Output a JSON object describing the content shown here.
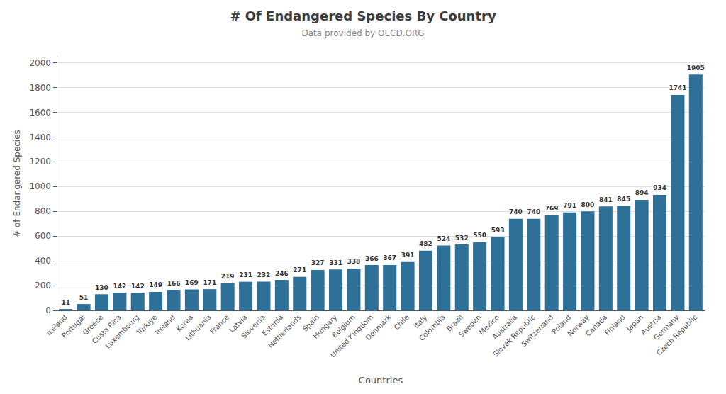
{
  "chart_data": {
    "type": "bar",
    "title": "# Of Endangered Species By Country",
    "subtitle": "Data provided by OECD.ORG",
    "xlabel": "Countries",
    "ylabel": "# of Endangered Species",
    "categories": [
      "Iceland",
      "Portugal",
      "Greece",
      "Costa Rica",
      "Luxembourg",
      "Türkiye",
      "Ireland",
      "Korea",
      "Lithuania",
      "France",
      "Latvia",
      "Slovenia",
      "Estonia",
      "Netherlands",
      "Spain",
      "Hungary",
      "Belgium",
      "United Kingdom",
      "Denmark",
      "Chile",
      "Italy",
      "Colombia",
      "Brazil",
      "Sweden",
      "Mexico",
      "Australia",
      "Slovak Republic",
      "Switzerland",
      "Poland",
      "Norway",
      "Canada",
      "Finland",
      "Japan",
      "Austria",
      "Germany",
      "Czech Republic"
    ],
    "values": [
      11,
      51,
      130,
      142,
      142,
      149,
      166,
      169,
      171,
      219,
      231,
      232,
      246,
      271,
      327,
      331,
      338,
      366,
      367,
      391,
      482,
      524,
      532,
      550,
      593,
      740,
      740,
      769,
      791,
      800,
      841,
      845,
      894,
      934,
      1741,
      1905
    ],
    "color": "#2e7098",
    "ylim": [
      0,
      2050
    ],
    "yticks": [
      0,
      200,
      400,
      600,
      800,
      1000,
      1200,
      1400,
      1600,
      1800,
      2000
    ],
    "grid": true,
    "data_labels": true
  }
}
